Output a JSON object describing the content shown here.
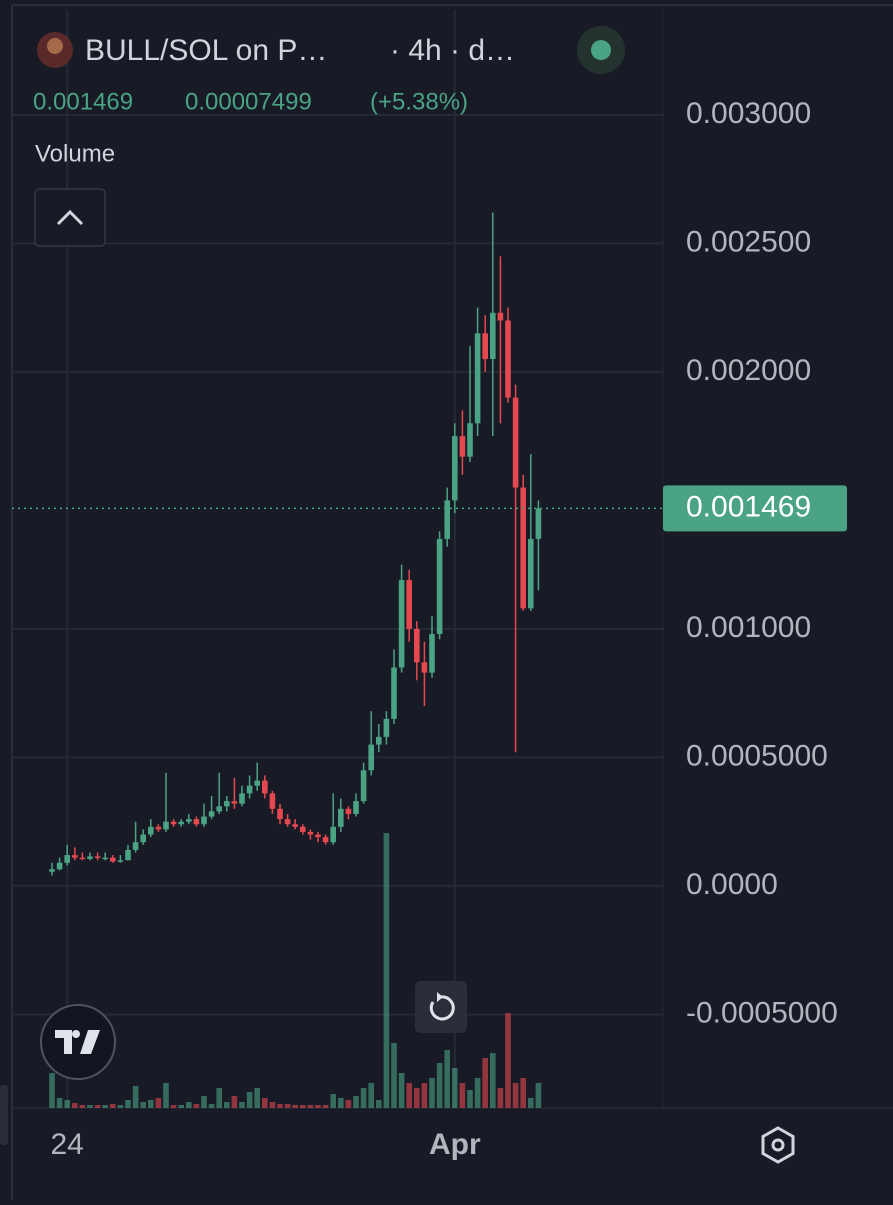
{
  "header": {
    "title": "BULL/SOL on P…",
    "interval": "· 4h · d…",
    "change": 7.499e-05,
    "change_percent": "(+5.38%)",
    "indicator": "Volume"
  },
  "chart_data": {
    "type": "candlestick",
    "open": [
      5.5e-05,
      6.5e-05,
      9e-05,
      0.00012,
      0.00011,
      0.000105,
      0.000115,
      0.00011,
      0.00011,
      9.5e-05,
      0.0001,
      0.00014,
      0.00017,
      0.0002,
      0.00023,
      0.00022,
      0.00025,
      0.00024,
      0.00025,
      0.00026,
      0.00024,
      0.00027,
      0.00029,
      0.00031,
      0.00033,
      0.00032,
      0.00036,
      0.00039,
      0.00041,
      0.00036,
      0.0003,
      0.00026,
      0.00024,
      0.00023,
      0.00021,
      0.0002,
      0.00019,
      0.00017,
      0.00023,
      0.0003,
      0.00028,
      0.00033,
      0.00045,
      0.00055,
      0.00058,
      0.00065,
      0.00085,
      0.00119,
      0.001,
      0.00087,
      0.00083,
      0.00098,
      0.00135,
      0.0015,
      0.00175,
      0.00167,
      0.0018,
      0.00215,
      0.00205,
      0.00223,
      0.0022,
      0.0019,
      0.00155,
      0.00108,
      0.00135
    ],
    "high": [
      9e-05,
      0.00011,
      0.00016,
      0.00015,
      0.00013,
      0.00013,
      0.00013,
      0.00013,
      0.00012,
      0.00012,
      0.00016,
      0.00025,
      0.00022,
      0.00026,
      0.00024,
      0.00044,
      0.00026,
      0.00026,
      0.00028,
      0.00027,
      0.00032,
      0.00035,
      0.00044,
      0.00035,
      0.00042,
      0.00039,
      0.00043,
      0.00048,
      0.00043,
      0.00037,
      0.00032,
      0.00028,
      0.00026,
      0.00024,
      0.00022,
      0.00021,
      0.0002,
      0.00036,
      0.00034,
      0.00031,
      0.00036,
      0.00048,
      0.00068,
      0.00063,
      0.00068,
      0.00092,
      0.00125,
      0.00123,
      0.00103,
      0.00095,
      0.00105,
      0.00138,
      0.00155,
      0.0018,
      0.00185,
      0.0021,
      0.00225,
      0.00222,
      0.00262,
      0.00245,
      0.00225,
      0.00195,
      0.0016,
      0.00168,
      0.0015
    ],
    "low": [
      4e-05,
      6e-05,
      8e-05,
      0.0001,
      0.0001,
      0.0001,
      0.0001,
      0.0001,
      9e-05,
      9e-05,
      0.0001,
      0.00013,
      0.00016,
      0.00019,
      0.00021,
      0.00021,
      0.00023,
      0.00023,
      0.00024,
      0.00023,
      0.00023,
      0.00026,
      0.00028,
      0.00029,
      0.0003,
      0.00031,
      0.00034,
      0.00037,
      0.00034,
      0.00028,
      0.00024,
      0.00023,
      0.00022,
      0.0002,
      0.00018,
      0.00017,
      0.00016,
      0.00016,
      0.00021,
      0.00026,
      0.00027,
      0.00032,
      0.00043,
      0.00052,
      0.00055,
      0.00063,
      0.00083,
      0.00095,
      0.0008,
      0.0007,
      0.00081,
      0.00096,
      0.00132,
      0.00145,
      0.0016,
      0.00165,
      0.00175,
      0.002,
      0.00175,
      0.0018,
      0.00188,
      0.00052,
      0.00107,
      0.00107,
      0.00115
    ],
    "close": [
      6.5e-05,
      9e-05,
      0.00012,
      0.00011,
      0.000105,
      0.000115,
      0.00011,
      0.00011,
      9.5e-05,
      0.0001,
      0.00014,
      0.00017,
      0.0002,
      0.00023,
      0.00022,
      0.00025,
      0.00024,
      0.00025,
      0.00026,
      0.00024,
      0.00027,
      0.00029,
      0.00031,
      0.00033,
      0.00032,
      0.00036,
      0.00039,
      0.00041,
      0.00036,
      0.0003,
      0.00026,
      0.00024,
      0.00023,
      0.00021,
      0.0002,
      0.00019,
      0.00017,
      0.00023,
      0.0003,
      0.00028,
      0.00033,
      0.00045,
      0.00055,
      0.00058,
      0.00065,
      0.00085,
      0.00119,
      0.001,
      0.00087,
      0.00083,
      0.00098,
      0.00135,
      0.0015,
      0.00175,
      0.00167,
      0.0018,
      0.00215,
      0.00205,
      0.00223,
      0.0022,
      0.0019,
      0.00155,
      0.00108,
      0.00135,
      0.001469
    ],
    "volume": [
      35,
      10,
      8,
      5,
      3,
      3,
      3,
      3,
      4,
      3,
      8,
      22,
      6,
      8,
      10,
      25,
      3,
      3,
      6,
      4,
      12,
      4,
      20,
      6,
      12,
      6,
      16,
      20,
      10,
      6,
      4,
      4,
      3,
      3,
      3,
      3,
      3,
      14,
      10,
      8,
      12,
      20,
      25,
      8,
      275,
      65,
      35,
      25,
      20,
      25,
      30,
      45,
      58,
      40,
      25,
      18,
      30,
      50,
      55,
      20,
      95,
      25,
      30,
      10,
      25
    ],
    "up_color": "#4aa383",
    "down_color": "#e5484f",
    "ylim": [
      -0.000864,
      0.003408
    ],
    "yticks": [
      {
        "value": 0.003,
        "label": "0.003000"
      },
      {
        "value": 0.0025,
        "label": "0.002500"
      },
      {
        "value": 0.002,
        "label": "0.002000"
      },
      {
        "value": 0.001,
        "label": "0.001000"
      },
      {
        "value": 0.0005,
        "label": "0.0005000"
      },
      {
        "value": 0,
        "label": "0.0000"
      },
      {
        "value": -0.0005,
        "label": "-0.0005000"
      }
    ],
    "xticks": [
      {
        "value": 2,
        "label": "24"
      },
      {
        "value": 53,
        "label": "Apr"
      }
    ],
    "grid": true
  }
}
